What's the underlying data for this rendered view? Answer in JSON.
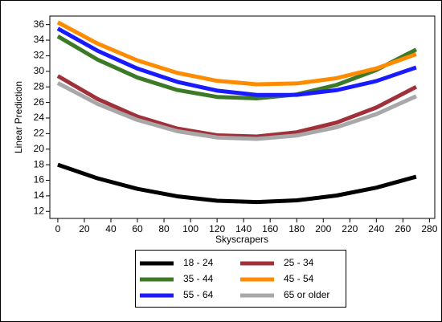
{
  "chart_data": {
    "type": "line",
    "x_label": "Skyscrapers",
    "y_label": "Linear Prediction",
    "x": [
      0,
      30,
      60,
      90,
      120,
      150,
      180,
      210,
      240,
      270
    ],
    "series": [
      {
        "name": "18 - 24",
        "color": "#000000",
        "values": [
          18.0,
          16.25,
          14.9,
          13.94,
          13.37,
          13.2,
          13.42,
          14.04,
          15.05,
          16.46
        ]
      },
      {
        "name": "25 - 34",
        "color": "#a0303a",
        "values": [
          29.4,
          26.44,
          24.19,
          22.64,
          21.78,
          21.63,
          22.17,
          23.41,
          25.35,
          28.0
        ]
      },
      {
        "name": "35 - 44",
        "color": "#3c7a28",
        "values": [
          34.5,
          31.5,
          29.2,
          27.6,
          26.71,
          26.52,
          27.03,
          28.25,
          30.17,
          32.8
        ]
      },
      {
        "name": "45 - 54",
        "color": "#ff8c00",
        "values": [
          36.3,
          33.56,
          31.4,
          29.8,
          28.78,
          28.33,
          28.44,
          29.12,
          30.37,
          32.2
        ]
      },
      {
        "name": "55 - 64",
        "color": "#1a1aff",
        "values": [
          35.5,
          32.64,
          30.35,
          28.65,
          27.52,
          26.96,
          26.98,
          27.58,
          28.75,
          30.5
        ]
      },
      {
        "name": "65 or older",
        "color": "#a8a8a8",
        "values": [
          28.5,
          25.81,
          23.75,
          22.31,
          21.5,
          21.31,
          21.75,
          22.81,
          24.5,
          26.8
        ]
      }
    ],
    "xlim": [
      -6,
      284
    ],
    "xticks": [
      0,
      20,
      40,
      60,
      80,
      100,
      120,
      140,
      160,
      180,
      200,
      220,
      240,
      260,
      280
    ],
    "ylim": [
      11.1,
      37.1
    ],
    "yticks": [
      12,
      14,
      16,
      18,
      20,
      22,
      24,
      26,
      28,
      30,
      32,
      34,
      36
    ]
  }
}
